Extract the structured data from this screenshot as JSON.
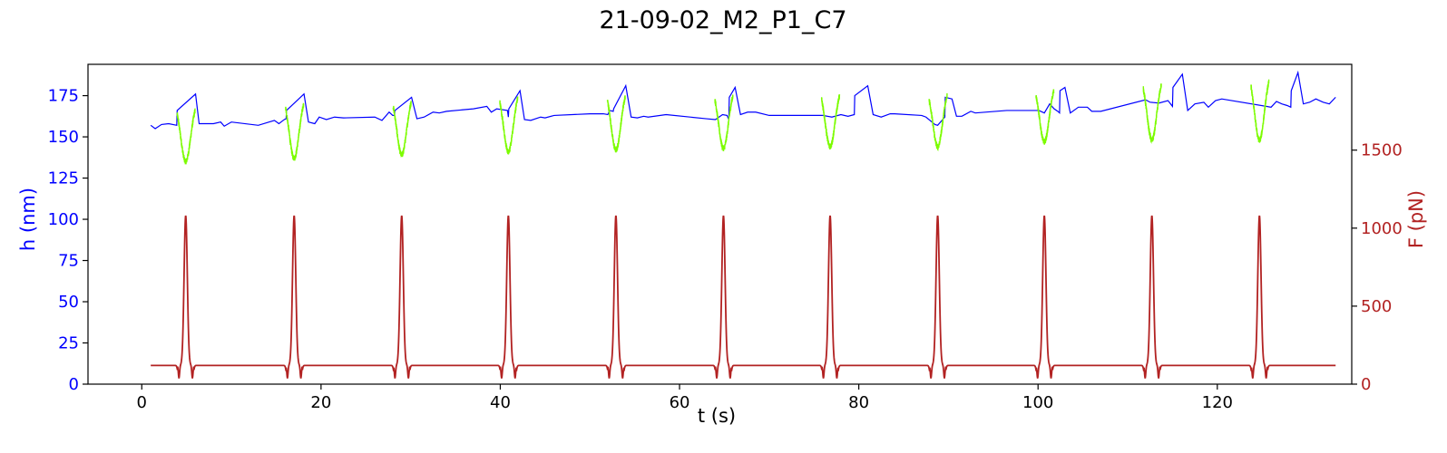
{
  "chart_data": {
    "type": "line",
    "title": "21-09-02_M2_P1_C7",
    "xlabel": "t (s)",
    "ylabel_left": "h (nm)",
    "ylabel_right": "F (pN)",
    "xlim": [
      -6,
      135
    ],
    "ylim_left": [
      0,
      194
    ],
    "ylim_right": [
      0,
      2050
    ],
    "x_ticks": [
      0,
      20,
      40,
      60,
      80,
      100,
      120
    ],
    "y_ticks_left": [
      0,
      25,
      50,
      75,
      100,
      125,
      150,
      175
    ],
    "y_ticks_right": [
      0,
      500,
      1000,
      1500
    ],
    "grid": false,
    "colors": {
      "height": "#0000ff",
      "height_during_compression": "#7cfc00",
      "force": "#b22222",
      "left_axis": "#0000ff",
      "right_axis": "#b22222"
    },
    "cycles": {
      "force_peak_times": [
        4.9,
        17.0,
        29.0,
        40.9,
        52.9,
        64.9,
        76.8,
        88.8,
        100.7,
        112.7,
        124.7
      ],
      "force_baseline": 120,
      "force_peak": 1080,
      "force_undershoot": 40,
      "height_green_top": [
        172,
        176,
        177,
        180,
        181,
        181,
        181,
        181,
        184,
        188,
        190
      ],
      "height_green_min": [
        135,
        137,
        139,
        141,
        142,
        143,
        144,
        144,
        147,
        148,
        148
      ]
    },
    "series": [
      {
        "key": "height_blue",
        "axis": "left",
        "points": [
          [
            1.0,
            157
          ],
          [
            1.5,
            155
          ],
          [
            2.2,
            157.5
          ],
          [
            3.0,
            158
          ],
          [
            3.9,
            157
          ],
          [
            3.95,
            166
          ],
          [
            6.0,
            176
          ],
          [
            6.4,
            158
          ],
          [
            8.0,
            158
          ],
          [
            8.8,
            159
          ],
          [
            9.2,
            156.5
          ],
          [
            10.0,
            159
          ],
          [
            13.0,
            157
          ],
          [
            14.2,
            159
          ],
          [
            14.8,
            160
          ],
          [
            15.3,
            158
          ],
          [
            15.9,
            160.5
          ],
          [
            16.1,
            161
          ],
          [
            16.15,
            166
          ],
          [
            18.1,
            176
          ],
          [
            18.6,
            159
          ],
          [
            19.3,
            158
          ],
          [
            19.8,
            162
          ],
          [
            20.6,
            160.5
          ],
          [
            21.5,
            162
          ],
          [
            22.5,
            161.5
          ],
          [
            26.0,
            162
          ],
          [
            26.8,
            160
          ],
          [
            27.6,
            165
          ],
          [
            28.0,
            163
          ],
          [
            28.2,
            163
          ],
          [
            28.25,
            166
          ],
          [
            30.1,
            174
          ],
          [
            30.7,
            161
          ],
          [
            31.5,
            162
          ],
          [
            32.5,
            165
          ],
          [
            33.2,
            164.5
          ],
          [
            34.0,
            165.5
          ],
          [
            37.0,
            167
          ],
          [
            38.5,
            168.5
          ],
          [
            39.0,
            165
          ],
          [
            39.6,
            167
          ],
          [
            40.8,
            166
          ],
          [
            40.9,
            162
          ],
          [
            40.95,
            167
          ],
          [
            42.2,
            178
          ],
          [
            42.7,
            160.5
          ],
          [
            43.4,
            160
          ],
          [
            44.5,
            162
          ],
          [
            45.0,
            161.5
          ],
          [
            46.0,
            163
          ],
          [
            50.0,
            164
          ],
          [
            51.5,
            164
          ],
          [
            52.0,
            163.5
          ],
          [
            52.2,
            166
          ],
          [
            52.6,
            165.5
          ],
          [
            52.65,
            167
          ],
          [
            54.0,
            181
          ],
          [
            54.6,
            162
          ],
          [
            55.3,
            161.5
          ],
          [
            56.0,
            162.5
          ],
          [
            56.5,
            162
          ],
          [
            58.5,
            163.5
          ],
          [
            63.0,
            161
          ],
          [
            64.0,
            160.5
          ],
          [
            64.8,
            163.5
          ],
          [
            65.3,
            163
          ],
          [
            65.5,
            160.5
          ],
          [
            65.55,
            174
          ],
          [
            66.2,
            180
          ],
          [
            66.8,
            163.5
          ],
          [
            67.6,
            165
          ],
          [
            68.5,
            165
          ],
          [
            70.0,
            163
          ],
          [
            76.0,
            163
          ],
          [
            77.0,
            162
          ],
          [
            78.0,
            163.5
          ],
          [
            78.8,
            162.5
          ],
          [
            79.5,
            163.5
          ],
          [
            79.55,
            175
          ],
          [
            81.0,
            181
          ],
          [
            81.6,
            163.5
          ],
          [
            82.5,
            162
          ],
          [
            83.5,
            164
          ],
          [
            84.0,
            164
          ],
          [
            87.0,
            163
          ],
          [
            87.5,
            162
          ],
          [
            88.5,
            157.5
          ],
          [
            88.8,
            157
          ],
          [
            89.6,
            162
          ],
          [
            89.65,
            174
          ],
          [
            90.4,
            173
          ],
          [
            90.9,
            162.5
          ],
          [
            91.5,
            162.5
          ],
          [
            92.5,
            165.5
          ],
          [
            93.0,
            164.5
          ],
          [
            96.5,
            166
          ],
          [
            100.1,
            166
          ],
          [
            100.7,
            164.5
          ],
          [
            101.3,
            170
          ],
          [
            101.8,
            167
          ],
          [
            102.2,
            165.5
          ],
          [
            102.4,
            164.5
          ],
          [
            102.45,
            178
          ],
          [
            103.0,
            180
          ],
          [
            103.6,
            164.5
          ],
          [
            104.5,
            168
          ],
          [
            105.5,
            168
          ],
          [
            106.0,
            165.5
          ],
          [
            107.0,
            165.5
          ],
          [
            112.0,
            172.5
          ],
          [
            112.5,
            171
          ],
          [
            113.5,
            170.5
          ],
          [
            114.5,
            172
          ],
          [
            115.0,
            168.5
          ],
          [
            115.05,
            180
          ],
          [
            116.1,
            188
          ],
          [
            116.7,
            166
          ],
          [
            117.5,
            170
          ],
          [
            118.5,
            171
          ],
          [
            119.0,
            168
          ],
          [
            119.8,
            172
          ],
          [
            120.5,
            173
          ],
          [
            126.0,
            168
          ],
          [
            126.6,
            171.5
          ],
          [
            127.2,
            170
          ],
          [
            127.8,
            169
          ],
          [
            128.2,
            168
          ],
          [
            128.25,
            178
          ],
          [
            129.0,
            189
          ],
          [
            129.6,
            170
          ],
          [
            130.3,
            171
          ],
          [
            131.0,
            173
          ],
          [
            131.8,
            171
          ],
          [
            132.5,
            170
          ],
          [
            133.2,
            174
          ]
        ]
      }
    ]
  }
}
